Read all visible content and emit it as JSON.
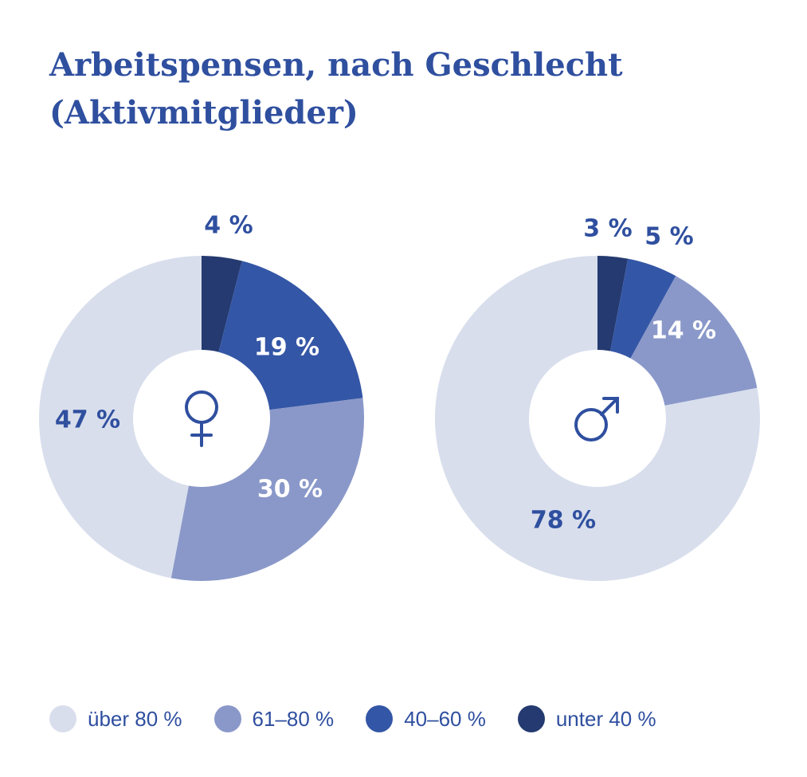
{
  "title_line1": "Arbeitspensen, nach Geschlecht",
  "title_line2": "(Aktivmitglieder)",
  "colors": {
    "über 80 %": "#d8deec",
    "61–80 %": "#8a98c9",
    "40–60 %": "#3456a6",
    "unter 40 %": "#243a70",
    "label_blue": "#2f4f9f",
    "label_white": "#ffffff"
  },
  "legend": [
    "über 80 %",
    "61–80 %",
    "40–60 %",
    "unter 40 %"
  ],
  "chart_data": [
    {
      "type": "pie",
      "variant": "donut",
      "center_icon": "female-symbol-icon",
      "categories": [
        "unter 40 %",
        "40–60 %",
        "61–80 %",
        "über 80 %"
      ],
      "values": [
        4,
        19,
        30,
        47
      ],
      "labels": [
        "4 %",
        "19 %",
        "30 %",
        "47 %"
      ]
    },
    {
      "type": "pie",
      "variant": "donut",
      "center_icon": "male-symbol-icon",
      "categories": [
        "unter 40 %",
        "40–60 %",
        "61–80 %",
        "über 80 %"
      ],
      "values": [
        3,
        5,
        14,
        78
      ],
      "labels": [
        "3 %",
        "5 %",
        "14 %",
        "78 %"
      ]
    }
  ]
}
